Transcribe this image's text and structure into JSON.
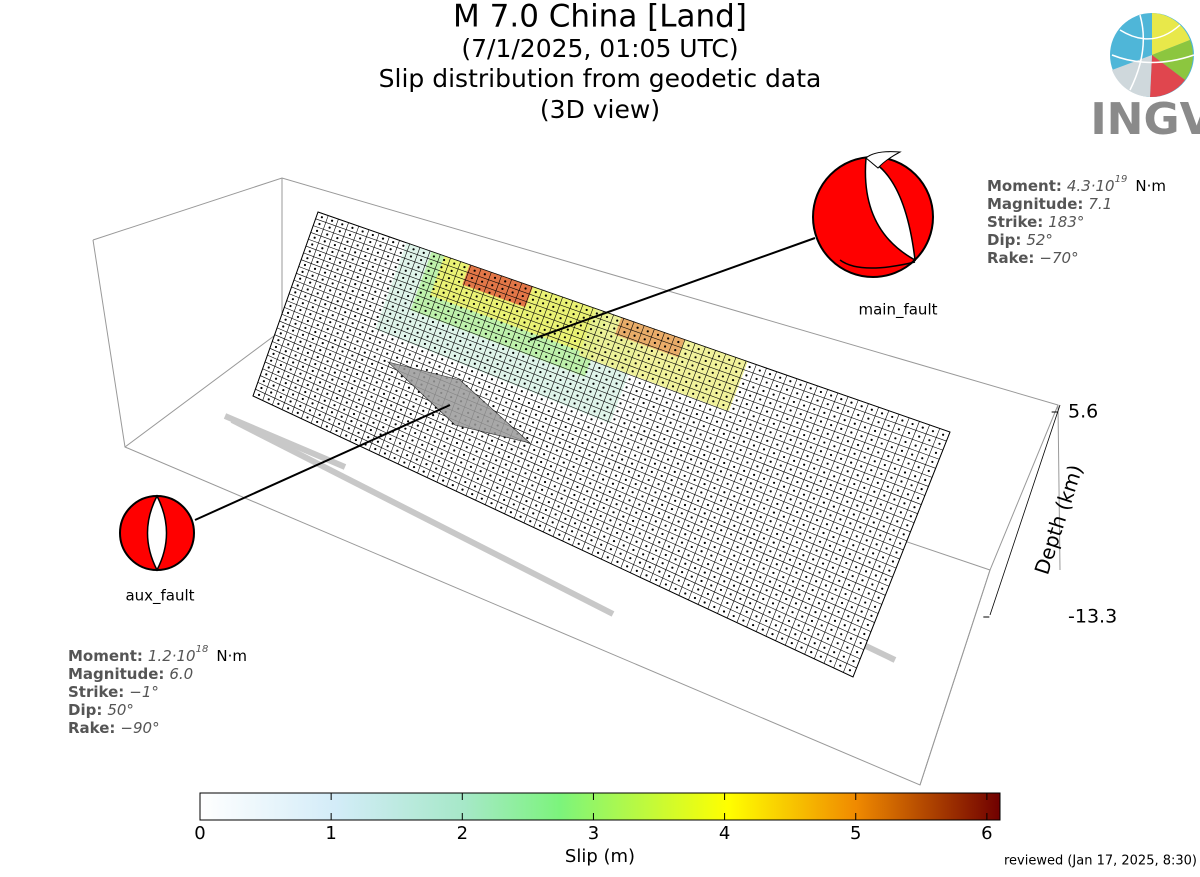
{
  "header": {
    "title": "M 7.0 China [Land]",
    "date": "(7/1/2025, 01:05 UTC)",
    "subtitle": "Slip distribution from geodetic data",
    "view": "(3D view)"
  },
  "logo": {
    "text": "INGV"
  },
  "depth_axis": {
    "label": "Depth (km)",
    "lim": [
      -13.3,
      5.6
    ],
    "ticks": [
      5.6,
      -13.3
    ]
  },
  "colorbar": {
    "label": "Slip (m)",
    "lim": [
      0,
      6.1
    ],
    "ticks": [
      0,
      1,
      2,
      3,
      4,
      5,
      6
    ]
  },
  "faults": [
    {
      "name": "main_fault",
      "moment_label": "Moment:",
      "moment_mantissa": "4.3·10",
      "moment_exponent": "19",
      "moment_unit": "N·m",
      "params": [
        {
          "label": "Magnitude:",
          "value": "7.1"
        },
        {
          "label": "Strike:",
          "value": "183°"
        },
        {
          "label": "Dip:",
          "value": "52°"
        },
        {
          "label": "Rake:",
          "value": "−70°"
        }
      ]
    },
    {
      "name": "aux_fault",
      "moment_label": "Moment:",
      "moment_mantissa": "1.2·10",
      "moment_exponent": "18",
      "moment_unit": "N·m",
      "params": [
        {
          "label": "Magnitude:",
          "value": "6.0"
        },
        {
          "label": "Strike:",
          "value": "−1°"
        },
        {
          "label": "Dip:",
          "value": "50°"
        },
        {
          "label": "Rake:",
          "value": "−90°"
        }
      ]
    }
  ],
  "reviewed": "reviewed (Jan 17, 2025, 8:30)"
}
